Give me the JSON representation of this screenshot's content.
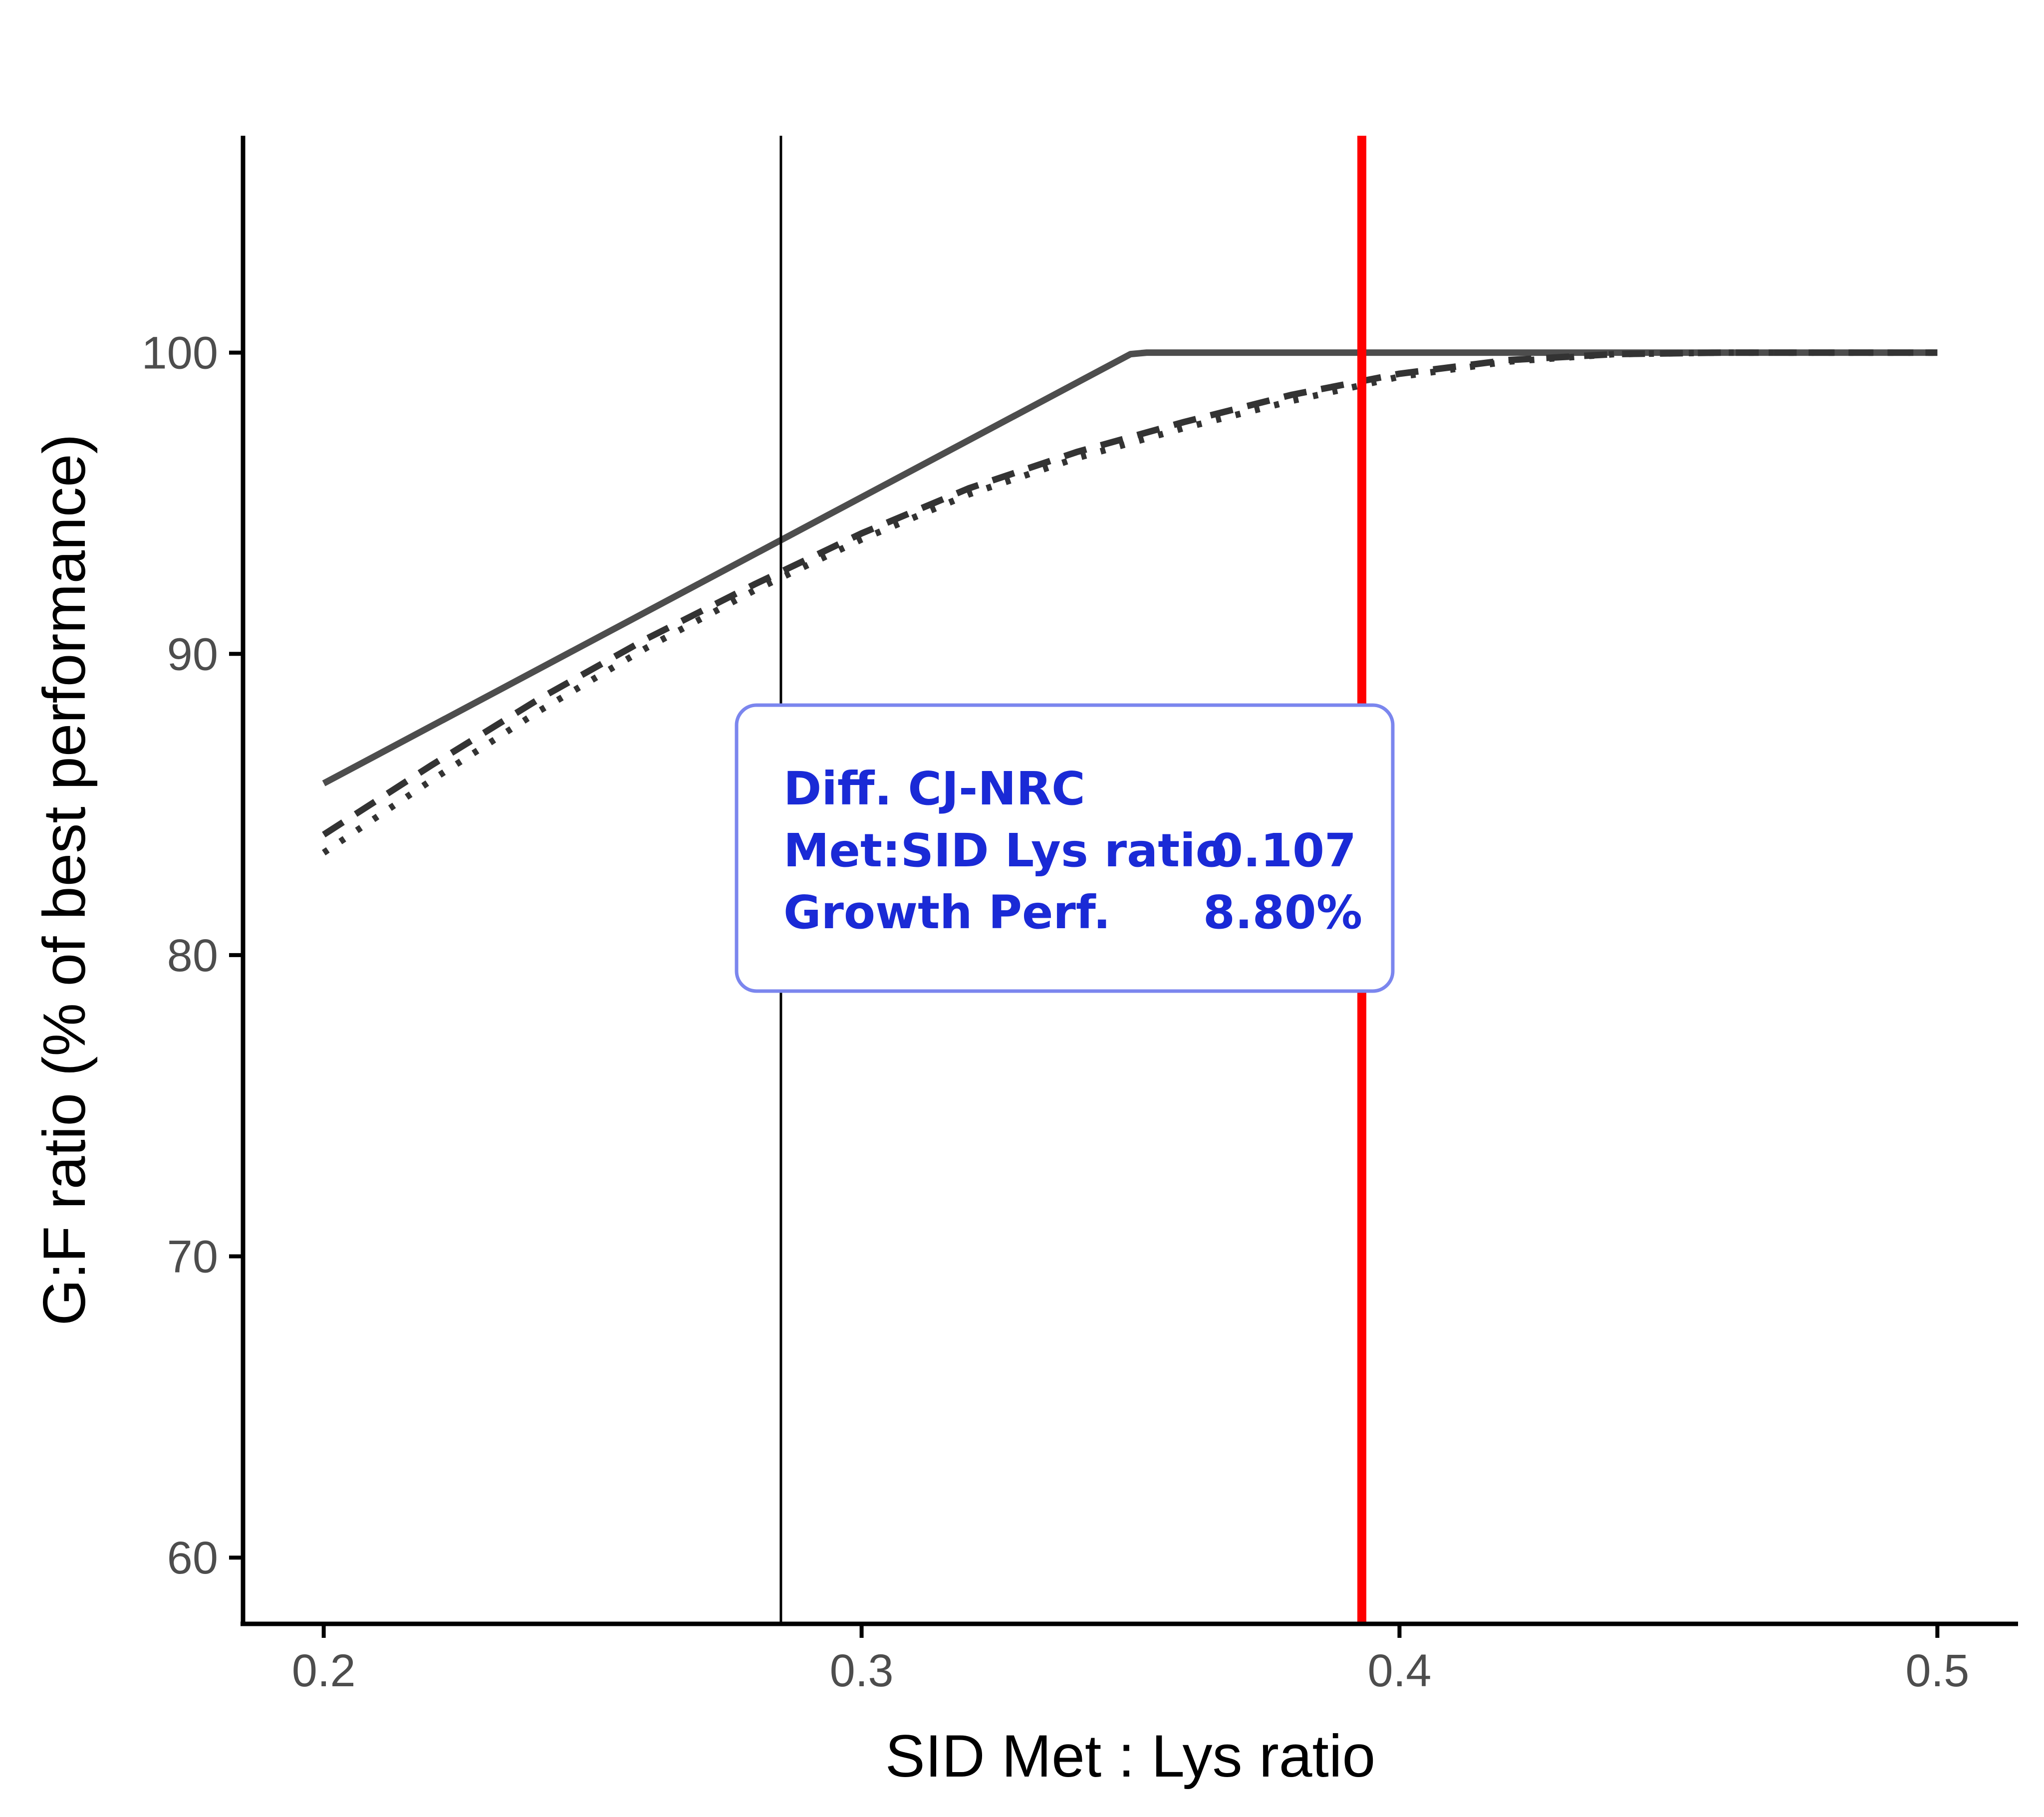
{
  "chart_data": {
    "type": "line",
    "xlabel": "SID Met : Lys ratio",
    "ylabel": "G:F ratio (% of best performance)",
    "xlim": [
      0.185,
      0.515
    ],
    "ylim": [
      57.8,
      107.2
    ],
    "x_ticks": [
      0.2,
      0.3,
      0.4,
      0.5
    ],
    "x_tick_labels": [
      "0.2",
      "0.3",
      "0.4",
      "0.5"
    ],
    "y_ticks": [
      60,
      70,
      80,
      90,
      100
    ],
    "y_tick_labels": [
      "60",
      "70",
      "80",
      "90",
      "100"
    ],
    "grid": false,
    "series": [
      {
        "style": "solid",
        "color": "#4d4d4d",
        "x": [
          0.2,
          0.35,
          0.353,
          0.5
        ],
        "y": [
          85.7,
          99.95,
          100,
          100
        ]
      },
      {
        "style": "dashed",
        "color": "#333333",
        "x": [
          0.2,
          0.22,
          0.24,
          0.26,
          0.28,
          0.3,
          0.32,
          0.34,
          0.36,
          0.38,
          0.4,
          0.42,
          0.44,
          0.46,
          0.48,
          0.5
        ],
        "y": [
          84.0,
          86.3,
          88.5,
          90.5,
          92.3,
          94.0,
          95.5,
          96.7,
          97.7,
          98.6,
          99.3,
          99.75,
          99.95,
          100,
          100,
          100
        ]
      },
      {
        "style": "dotted",
        "color": "#333333",
        "x": [
          0.2,
          0.22,
          0.24,
          0.26,
          0.28,
          0.3,
          0.32,
          0.34,
          0.36,
          0.38,
          0.4,
          0.42,
          0.44,
          0.46,
          0.48,
          0.5
        ],
        "y": [
          83.4,
          85.8,
          88.1,
          90.2,
          92.1,
          93.8,
          95.3,
          96.5,
          97.5,
          98.4,
          99.2,
          99.7,
          99.95,
          100,
          100,
          100
        ]
      }
    ],
    "vlines": [
      {
        "x": 0.285,
        "color": "#000000"
      },
      {
        "x": 0.393,
        "color": "#ff0000"
      }
    ],
    "annotation": {
      "color": "#1a2ad6",
      "border_color": "#7b86ee",
      "title": "Diff. CJ-NRC",
      "row1_label": "Met:SID Lys ratio",
      "row1_value": "0.107",
      "row2_label": "Growth Perf.",
      "row2_value": "8.80%"
    }
  }
}
